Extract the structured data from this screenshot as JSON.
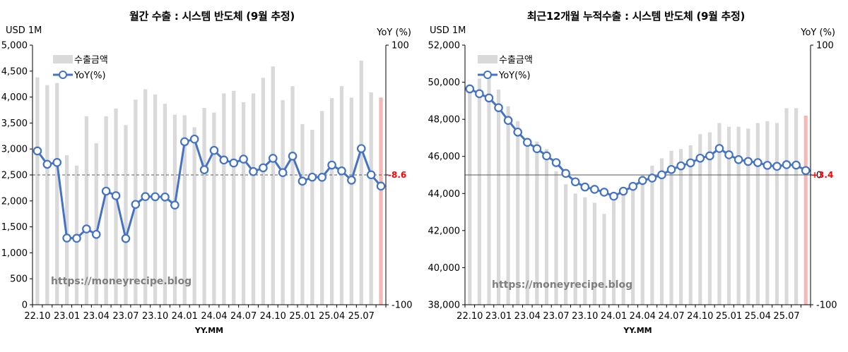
{
  "chart_data": [
    {
      "type": "bar+line",
      "title": "월간 수출 : 시스템 반도체 (9월 추정)",
      "ylabel_left": "USD 1M",
      "ylabel_right": "YoY (%)",
      "xlabel": "YY.MM",
      "ylim_left": [
        0,
        5000
      ],
      "ylim_right": [
        -100,
        100
      ],
      "yticks_left": [
        "0",
        "500",
        "1,000",
        "1,500",
        "2,000",
        "2,500",
        "3,000",
        "3,500",
        "4,000",
        "4,500",
        "5,000"
      ],
      "yticks_right": [
        "-100",
        "",
        "100"
      ],
      "xtick_labels": [
        "22.10",
        "23.01",
        "23.04",
        "23.07",
        "23.10",
        "24.01",
        "24.04",
        "24.07",
        "24.10",
        "25.01",
        "25.04",
        "25.07"
      ],
      "legend": [
        "수출금액",
        "YoY(%)"
      ],
      "watermark": "https://moneyrecipe.blog",
      "annotation": "-8.6",
      "reference_line_right": 0,
      "bar_color": "#d9d9d9",
      "highlight_color": "#f4b8b8",
      "line_color": "#4472c4",
      "series": [
        {
          "name": "수출금액",
          "axis": "left",
          "values": [
            4380,
            4230,
            4270,
            2880,
            2680,
            3630,
            3110,
            3630,
            3780,
            3460,
            3950,
            4150,
            4050,
            3870,
            3660,
            3650,
            3420,
            3790,
            3700,
            4070,
            4120,
            3900,
            4070,
            4370,
            4590,
            3940,
            4210,
            3480,
            3370,
            3730,
            3980,
            4210,
            3990,
            4700,
            4090,
            3990
          ]
        },
        {
          "name": "YoY(%)",
          "axis": "right",
          "values": [
            18.5,
            8.2,
            9.6,
            -48.6,
            -48.8,
            -41.6,
            -45.8,
            -12.5,
            -16.0,
            -49.0,
            -22.7,
            -16.7,
            -16.8,
            -17.0,
            -23.2,
            25.6,
            27.6,
            4.0,
            18.9,
            11.5,
            9.2,
            12.2,
            2.6,
            5.5,
            12.8,
            1.8,
            14.5,
            -4.8,
            -1.7,
            -1.8,
            7.6,
            3.1,
            -4.0,
            20.3,
            0.1,
            -8.6
          ]
        }
      ]
    },
    {
      "type": "bar+line",
      "title": "최근12개월 누적수출 : 시스템 반도체 (9월 추정)",
      "ylabel_left": "USD 1M",
      "ylabel_right": "YoY (%)",
      "xlabel": "YY.MM",
      "ylim_left": [
        38000,
        52000
      ],
      "ylim_right": [
        -100,
        100
      ],
      "yticks_left": [
        "38,000",
        "40,000",
        "42,000",
        "44,000",
        "46,000",
        "48,000",
        "50,000",
        "52,000"
      ],
      "yticks_right": [
        "-100",
        "0",
        "100"
      ],
      "xtick_labels": [
        "22.10",
        "23.01",
        "23.04",
        "23.07",
        "23.10",
        "24.01",
        "24.04",
        "24.07",
        "24.10",
        "25.01",
        "25.04",
        "25.07"
      ],
      "legend": [
        "수출금액",
        "YoY(%)"
      ],
      "watermark": "https://moneyrecipe.blog",
      "annotation": "+3.4",
      "reference_line_right": 0,
      "bar_color": "#d9d9d9",
      "highlight_color": "#f4b8b8",
      "line_color": "#4472c4",
      "series": [
        {
          "name": "수출금액",
          "axis": "left",
          "values": [
            49900,
            50200,
            50300,
            49600,
            48700,
            47900,
            47000,
            46800,
            46400,
            45200,
            44500,
            44000,
            43800,
            43500,
            42900,
            43600,
            44000,
            44600,
            45000,
            45500,
            45900,
            46300,
            46400,
            46600,
            47200,
            47300,
            47800,
            47600,
            47600,
            47500,
            47800,
            47900,
            47800,
            48600,
            48600,
            48200
          ]
        },
        {
          "name": "YoY(%)",
          "axis": "right",
          "values": [
            66.3,
            62.6,
            59.3,
            51.8,
            42.0,
            33.0,
            25.1,
            20.2,
            14.7,
            9.5,
            1.2,
            -5.3,
            -9.3,
            -11.1,
            -13.3,
            -16.4,
            -12.5,
            -8.8,
            -4.3,
            -2.4,
            0.1,
            4.2,
            7.0,
            9.3,
            12.9,
            14.7,
            20.4,
            15.5,
            11.8,
            10.4,
            9.5,
            7.4,
            6.6,
            7.9,
            7.6,
            3.4
          ]
        }
      ]
    }
  ]
}
